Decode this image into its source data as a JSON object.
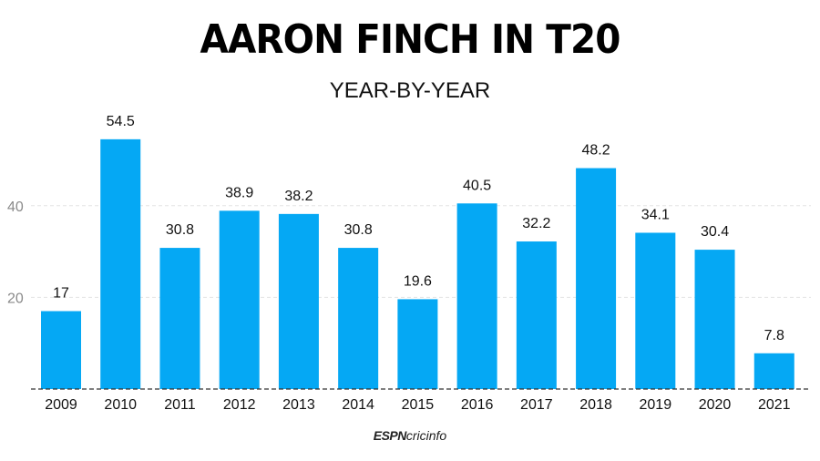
{
  "chart_data": {
    "type": "bar",
    "title": "AARON FINCH IN T20",
    "subtitle": "YEAR-BY-YEAR",
    "categories": [
      "2009",
      "2010",
      "2011",
      "2012",
      "2013",
      "2014",
      "2015",
      "2016",
      "2017",
      "2018",
      "2019",
      "2020",
      "2021"
    ],
    "values": [
      17,
      54.5,
      30.8,
      38.9,
      38.2,
      30.8,
      19.6,
      40.5,
      32.2,
      48.2,
      34.1,
      30.4,
      7.8
    ],
    "value_labels": [
      "17",
      "54.5",
      "30.8",
      "38.9",
      "38.2",
      "30.8",
      "19.6",
      "40.5",
      "32.2",
      "48.2",
      "34.1",
      "30.4",
      "7.8"
    ],
    "yticks": [
      20,
      40
    ],
    "ytick_labels": [
      "20",
      "40"
    ],
    "ylim": [
      0,
      60
    ],
    "xlabel": "",
    "ylabel": "",
    "grid": true,
    "bar_color": "#05a8f4"
  },
  "brand": {
    "espn": "ESPN",
    "cricinfo": "cricinfo"
  }
}
